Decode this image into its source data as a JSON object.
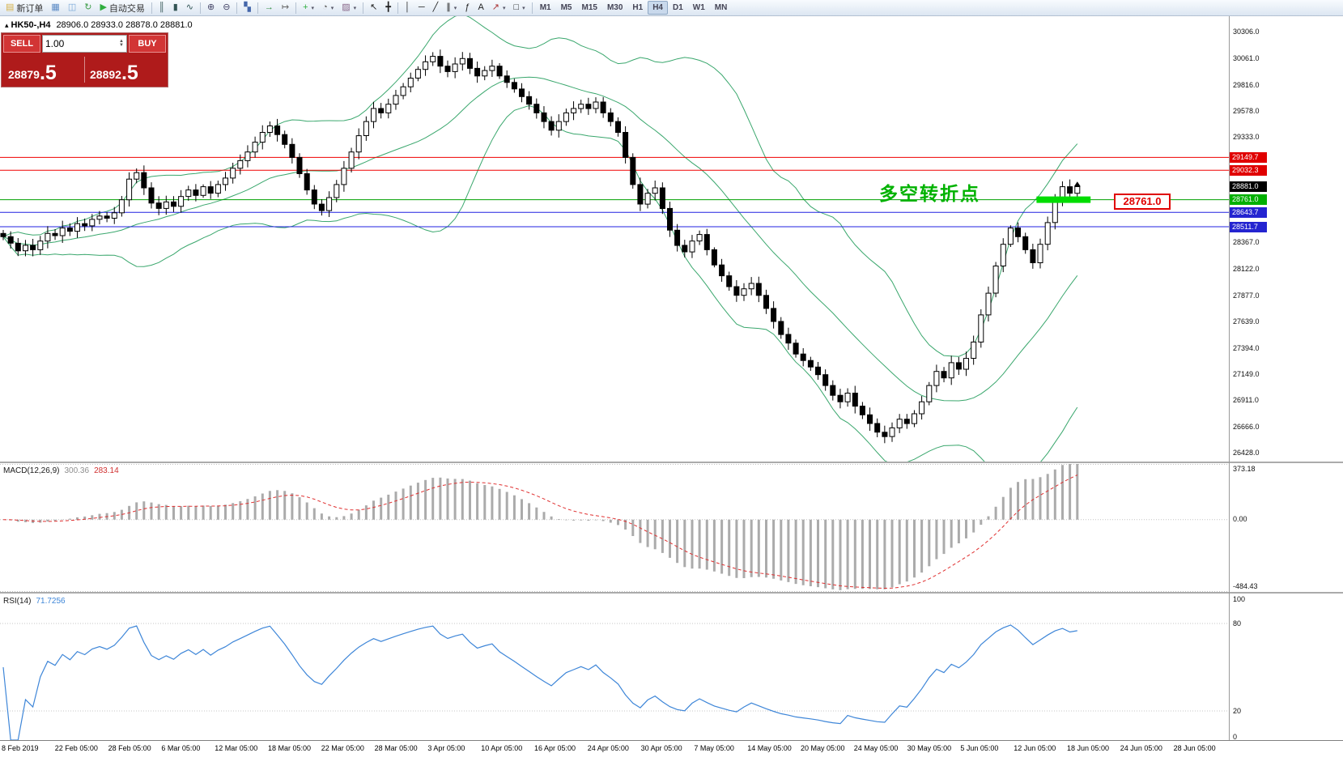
{
  "toolbar": {
    "groups": [
      {
        "items": [
          {
            "name": "new-order-button",
            "glyph": "▤",
            "color": "#d8b24a",
            "label": "新订单"
          },
          {
            "name": "market-watch-button",
            "glyph": "▦",
            "color": "#5b8ac5"
          },
          {
            "name": "data-window-button",
            "glyph": "◫",
            "color": "#7aa8d8"
          },
          {
            "name": "refresh-button",
            "glyph": "↻",
            "color": "#3f9d48"
          },
          {
            "name": "autotrading-button",
            "glyph": "▶",
            "color": "#2fae3e",
            "label": "自动交易"
          }
        ]
      },
      {
        "items": [
          {
            "name": "bars-chart-button",
            "glyph": "║",
            "color": "#355"
          },
          {
            "name": "candlestick-chart-button",
            "glyph": "▮",
            "color": "#355"
          },
          {
            "name": "line-chart-button",
            "glyph": "∿",
            "color": "#355"
          }
        ]
      },
      {
        "items": [
          {
            "name": "zoom-in-button",
            "glyph": "⊕",
            "color": "#446"
          },
          {
            "name": "zoom-out-button",
            "glyph": "⊖",
            "color": "#446"
          }
        ]
      },
      {
        "items": [
          {
            "name": "tile-windows-button",
            "glyph": "▚",
            "color": "#46a"
          }
        ]
      },
      {
        "items": [
          {
            "name": "auto-scroll-button",
            "glyph": "→",
            "color": "#2f8d3e"
          },
          {
            "name": "chart-shift-button",
            "glyph": "↦",
            "color": "#666"
          }
        ]
      },
      {
        "items": [
          {
            "name": "indicators-button",
            "glyph": "+",
            "color": "#2fae3e",
            "dropdown": true
          },
          {
            "name": "periods-button",
            "glyph": "◔",
            "color": "#666",
            "dropdown": true
          },
          {
            "name": "templates-button",
            "glyph": "▨",
            "color": "#868",
            "dropdown": true
          }
        ]
      },
      {
        "items": [
          {
            "name": "cursor-button",
            "glyph": "↖",
            "color": "#222"
          },
          {
            "name": "crosshair-button",
            "glyph": "╋",
            "color": "#222"
          }
        ]
      },
      {
        "items": [
          {
            "name": "vertical-line-button",
            "glyph": "│",
            "color": "#222"
          },
          {
            "name": "horizontal-line-button",
            "glyph": "─",
            "color": "#222"
          },
          {
            "name": "trendline-button",
            "glyph": "╱",
            "color": "#222"
          },
          {
            "name": "channel-button",
            "glyph": "∥",
            "color": "#222",
            "dropdown": true
          },
          {
            "name": "fibonacci-button",
            "glyph": "ƒ",
            "color": "#222"
          },
          {
            "name": "text-button",
            "glyph": "A",
            "color": "#222"
          },
          {
            "name": "arrows-button",
            "glyph": "↗",
            "color": "#a33",
            "dropdown": true
          },
          {
            "name": "shapes-button",
            "glyph": "□",
            "color": "#222",
            "dropdown": true
          }
        ]
      },
      {
        "items": [
          {
            "name": "tf-m1-button",
            "label": "M1",
            "tf": true
          },
          {
            "name": "tf-m5-button",
            "label": "M5",
            "tf": true
          },
          {
            "name": "tf-m15-button",
            "label": "M15",
            "tf": true
          },
          {
            "name": "tf-m30-button",
            "label": "M30",
            "tf": true
          },
          {
            "name": "tf-h1-button",
            "label": "H1",
            "tf": true
          },
          {
            "name": "tf-h4-button",
            "label": "H4",
            "tf": true,
            "active": true
          },
          {
            "name": "tf-d1-button",
            "label": "D1",
            "tf": true
          },
          {
            "name": "tf-w1-button",
            "label": "W1",
            "tf": true
          },
          {
            "name": "tf-mn-button",
            "label": "MN",
            "tf": true
          }
        ]
      }
    ]
  },
  "symbol_bar": {
    "symbol": "HK50-,H4",
    "ohlc": "28906.0 28933.0 28878.0 28881.0"
  },
  "trade_panel": {
    "sell_label": "SELL",
    "buy_label": "BUY",
    "volume": "1.00",
    "sell_price": {
      "main": "28879",
      "big": ".5"
    },
    "buy_price": {
      "main": "28892",
      "big": ".5"
    }
  },
  "annotation": {
    "turning_point_text": "多空转折点",
    "turning_point_color": "#00b200",
    "callout_label": "28761.0",
    "highlight_segment": {
      "price": 28761.0,
      "start_index": 139.5,
      "end_index": 146.8,
      "color": "#00dd00"
    },
    "marker": {
      "price": 28928
    }
  },
  "chart_data": {
    "type": "candlestick",
    "symbol": "HK50-",
    "timeframe": "H4",
    "ohlc_display": {
      "open": "28906.0",
      "high": "28933.0",
      "low": "28878.0",
      "close": "28881.0"
    },
    "price_top": 30450,
    "price_bottom": 26350,
    "first_open": 28450,
    "closes": [
      28420,
      28360,
      28290,
      28340,
      28300,
      28380,
      28450,
      28430,
      28500,
      28470,
      28540,
      28520,
      28580,
      28610,
      28590,
      28640,
      28760,
      28950,
      29010,
      28870,
      28730,
      28680,
      28740,
      28700,
      28790,
      28850,
      28800,
      28880,
      28820,
      28900,
      28960,
      29050,
      29120,
      29200,
      29290,
      29380,
      29440,
      29360,
      29270,
      29150,
      29000,
      28850,
      28720,
      28660,
      28780,
      28900,
      29050,
      29200,
      29350,
      29480,
      29600,
      29560,
      29640,
      29720,
      29800,
      29880,
      29960,
      30030,
      30080,
      29990,
      29940,
      30010,
      30060,
      29970,
      29900,
      29950,
      29990,
      29900,
      29840,
      29780,
      29710,
      29640,
      29560,
      29480,
      29400,
      29480,
      29560,
      29600,
      29640,
      29600,
      29660,
      29560,
      29480,
      29380,
      29150,
      28900,
      28720,
      28820,
      28870,
      28680,
      28480,
      28340,
      28280,
      28380,
      28440,
      28300,
      28160,
      28060,
      27960,
      27880,
      27940,
      27990,
      27880,
      27760,
      27640,
      27520,
      27440,
      27340,
      27280,
      27220,
      27150,
      27050,
      26960,
      26900,
      26980,
      26860,
      26780,
      26700,
      26620,
      26580,
      26660,
      26740,
      26700,
      26790,
      26900,
      27050,
      27180,
      27120,
      27260,
      27200,
      27300,
      27450,
      27700,
      27900,
      28150,
      28350,
      28500,
      28420,
      28300,
      28180,
      28350,
      28550,
      28750,
      28880,
      28820,
      28881
    ],
    "price_axis_ticks": [
      "30306.0",
      "30061.0",
      "29816.0",
      "29578.0",
      "29333.0",
      "28367.0",
      "28122.0",
      "27877.0",
      "27639.0",
      "27394.0",
      "27149.0",
      "26911.0",
      "26666.0",
      "26428.0"
    ],
    "levels": [
      {
        "value": 29149.7,
        "label": "29149.7",
        "color": "#f00000",
        "chip_bg": "#e00000"
      },
      {
        "value": 29032.3,
        "label": "29032.3",
        "color": "#f00000",
        "chip_bg": "#e00000"
      },
      {
        "value": 28881.0,
        "label": "28881.0",
        "color": null,
        "chip_bg": "#000000"
      },
      {
        "value": 28761.0,
        "label": "28761.0",
        "color": "#00a000",
        "chip_bg": "#00b000"
      },
      {
        "value": 28643.7,
        "label": "28643.7",
        "color": "#2020e0",
        "chip_bg": "#2424d0"
      },
      {
        "value": 28511.7,
        "label": "28511.7",
        "color": "#2020e0",
        "chip_bg": "#2424d0"
      }
    ],
    "style": {
      "candle_up": "#ffffff",
      "candle_down": "#000000",
      "candle_border": "#000000",
      "macd_histogram": "#ababab",
      "macd_signal": "#e03030",
      "rsi_line": "#3e86d8"
    },
    "indicators": {
      "bollinger": {
        "period": 20,
        "deviation": 2,
        "color": "#3aa76d"
      },
      "macd": {
        "display": "MACD(12,26,9)",
        "fast": 12,
        "slow": 26,
        "signal": 9,
        "value_main": "300.36",
        "value_signal": "283.14",
        "axis_max": 373.18,
        "axis_min": -484.43,
        "axis_labels": [
          "373.18",
          "0.00",
          "-484.43"
        ]
      },
      "rsi": {
        "display": "RSI(14)",
        "period": 14,
        "value": "71.7256",
        "axis_labels": [
          "100",
          "80",
          "20",
          "0"
        ],
        "levels": [
          80,
          20
        ]
      }
    },
    "time_labels": [
      "8 Feb 2019",
      "22 Feb 05:00",
      "28 Feb 05:00",
      "6 Mar 05:00",
      "12 Mar 05:00",
      "18 Mar 05:00",
      "22 Mar 05:00",
      "28 Mar 05:00",
      "3 Apr 05:00",
      "10 Apr 05:00",
      "16 Apr 05:00",
      "24 Apr 05:00",
      "30 Apr 05:00",
      "7 May 05:00",
      "14 May 05:00",
      "20 May 05:00",
      "24 May 05:00",
      "30 May 05:00",
      "5 Jun 05:00",
      "12 Jun 05:00",
      "18 Jun 05:00",
      "24 Jun 05:00",
      "28 Jun 05:00"
    ]
  }
}
